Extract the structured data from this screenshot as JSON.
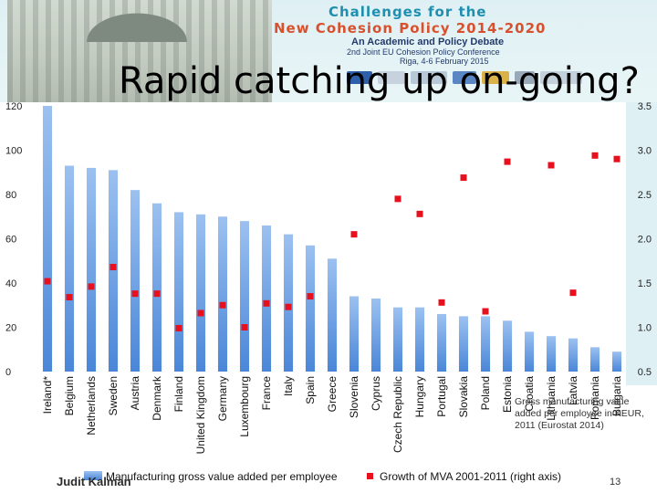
{
  "banner": {
    "title_line1": "Challenges for the",
    "title_line2": "New Cohesion Policy 2014-2020",
    "subtitle": "An Academic and Policy Debate",
    "conference": "2nd Joint EU Cohesion Policy Conference",
    "place_date": "Riga, 4-6 February 2015"
  },
  "slide": {
    "title": "Rapid catching up on-going?",
    "author": "Judit Kalman",
    "page_number": "13",
    "source_note": "Gross manufacturing value added per employee in KEUR, 2011 (Eurostat 2014)"
  },
  "colors": {
    "bar_top": "#9cc1f0",
    "bar_bottom": "#4a86d8",
    "marker": "#e8101c",
    "banner_bg": "#dff0f4"
  },
  "chart_data": {
    "type": "bar",
    "categories": [
      "Ireland*",
      "Belgium",
      "Netherlands",
      "Sweden",
      "Austria",
      "Denmark",
      "Finland",
      "United Kingdom",
      "Germany",
      "Luxembourg",
      "France",
      "Italy",
      "Spain",
      "Greece",
      "Slovenia",
      "Cyprus",
      "Czech Republic",
      "Hungary",
      "Portugal",
      "Slovakia",
      "Poland",
      "Estonia",
      "Croatia",
      "Lithuania",
      "Latvia",
      "Romania",
      "Bulgaria"
    ],
    "series": [
      {
        "name": "Manufacturing gross value added per employee",
        "type": "bar",
        "axis": "left",
        "values": [
          120,
          93,
          92,
          91,
          82,
          76,
          72,
          71,
          70,
          68,
          66,
          62,
          57,
          51,
          34,
          33,
          29,
          29,
          26,
          25,
          25,
          23,
          18,
          16,
          15,
          11,
          9
        ]
      },
      {
        "name": "Growth of MVA 2001-2011 (right axis)",
        "type": "marker",
        "axis": "right",
        "values": [
          1.52,
          1.34,
          1.46,
          1.68,
          1.38,
          1.38,
          0.99,
          1.16,
          1.25,
          1.0,
          1.27,
          1.23,
          1.35,
          null,
          2.05,
          null,
          2.45,
          2.28,
          1.28,
          2.69,
          1.18,
          2.87,
          null,
          2.83,
          1.39,
          2.94,
          2.9
        ]
      }
    ],
    "ylim": [
      0,
      120
    ],
    "yticks": [
      0,
      20,
      40,
      60,
      80,
      100,
      120
    ],
    "y2lim": [
      0.5,
      3.5
    ],
    "y2ticks": [
      "0.5",
      "1.0",
      "1.5",
      "2.0",
      "2.5",
      "3.0",
      "3.5"
    ],
    "grid": false,
    "legend_position": "bottom"
  }
}
